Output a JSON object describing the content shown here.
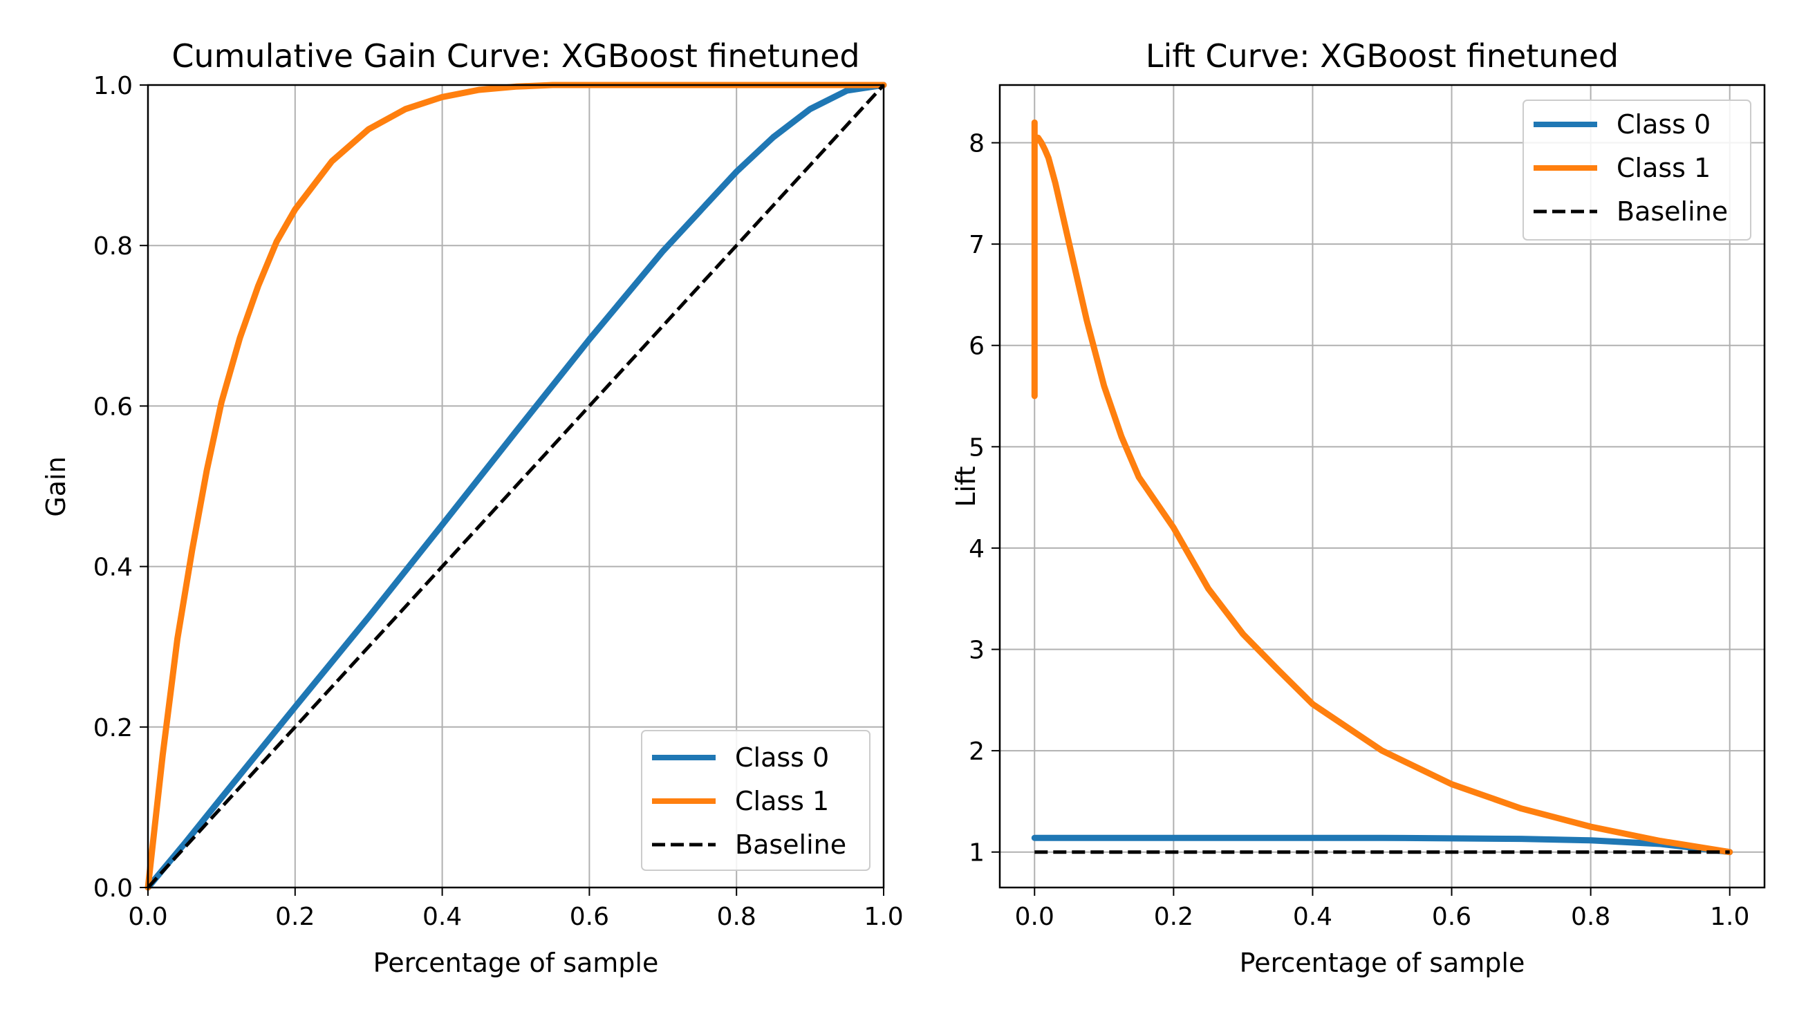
{
  "chart_data": [
    {
      "type": "line",
      "title": "Cumulative Gain Curve: XGBoost finetuned",
      "xlabel": "Percentage of sample",
      "ylabel": "Gain",
      "xlim": [
        0.0,
        1.0
      ],
      "ylim": [
        0.0,
        1.0
      ],
      "xticks": [
        "0.0",
        "0.2",
        "0.4",
        "0.6",
        "0.8",
        "1.0"
      ],
      "yticks": [
        "0.0",
        "0.2",
        "0.4",
        "0.6",
        "0.8",
        "1.0"
      ],
      "grid": true,
      "legend_position": "lower-right",
      "series": [
        {
          "name": "Class 0",
          "color": "#1f77b4",
          "style": "solid",
          "x": [
            0.0,
            0.05,
            0.1,
            0.2,
            0.3,
            0.4,
            0.5,
            0.6,
            0.7,
            0.8,
            0.85,
            0.9,
            0.95,
            1.0
          ],
          "y": [
            0.0,
            0.055,
            0.112,
            0.225,
            0.337,
            0.452,
            0.568,
            0.683,
            0.793,
            0.892,
            0.935,
            0.97,
            0.993,
            1.0
          ]
        },
        {
          "name": "Class 1",
          "color": "#ff7f0e",
          "style": "solid",
          "x": [
            0.0,
            0.02,
            0.04,
            0.06,
            0.08,
            0.1,
            0.125,
            0.15,
            0.175,
            0.2,
            0.25,
            0.3,
            0.35,
            0.4,
            0.45,
            0.5,
            0.55,
            0.6,
            1.0
          ],
          "y": [
            0.0,
            0.165,
            0.31,
            0.42,
            0.52,
            0.605,
            0.685,
            0.75,
            0.805,
            0.845,
            0.905,
            0.945,
            0.97,
            0.985,
            0.994,
            0.998,
            1.0,
            1.0,
            1.0
          ]
        },
        {
          "name": "Baseline",
          "color": "#000000",
          "style": "dashed",
          "x": [
            0.0,
            1.0
          ],
          "y": [
            0.0,
            1.0
          ]
        }
      ]
    },
    {
      "type": "line",
      "title": "Lift Curve: XGBoost finetuned",
      "xlabel": "Percentage of sample",
      "ylabel": "Lift",
      "xlim": [
        -0.05,
        1.05
      ],
      "ylim": [
        0.65,
        8.57
      ],
      "xticks": [
        "0.0",
        "0.2",
        "0.4",
        "0.6",
        "0.8",
        "1.0"
      ],
      "yticks": [
        "1",
        "2",
        "3",
        "4",
        "5",
        "6",
        "7",
        "8"
      ],
      "grid": true,
      "legend_position": "upper-right",
      "series": [
        {
          "name": "Class 0",
          "color": "#1f77b4",
          "style": "solid",
          "x": [
            0.0,
            0.1,
            0.3,
            0.5,
            0.6,
            0.7,
            0.8,
            0.9,
            0.95,
            1.0
          ],
          "y": [
            1.14,
            1.14,
            1.14,
            1.14,
            1.135,
            1.13,
            1.115,
            1.08,
            1.04,
            1.0
          ]
        },
        {
          "name": "Class 1",
          "color": "#ff7f0e",
          "style": "solid",
          "x": [
            0.0,
            0.0,
            0.0,
            0.0,
            0.005,
            0.01,
            0.015,
            0.02,
            0.03,
            0.05,
            0.075,
            0.1,
            0.125,
            0.15,
            0.2,
            0.25,
            0.3,
            0.35,
            0.4,
            0.5,
            0.6,
            0.7,
            0.8,
            0.9,
            1.0
          ],
          "y": [
            5.5,
            8.2,
            6.5,
            8.0,
            8.05,
            8.0,
            7.93,
            7.85,
            7.6,
            7.0,
            6.25,
            5.6,
            5.1,
            4.7,
            4.2,
            3.6,
            3.15,
            2.8,
            2.46,
            2.0,
            1.67,
            1.43,
            1.25,
            1.11,
            1.0
          ]
        },
        {
          "name": "Baseline",
          "color": "#000000",
          "style": "dashed",
          "x": [
            0.0,
            1.0
          ],
          "y": [
            1.0,
            1.0
          ]
        }
      ]
    }
  ]
}
